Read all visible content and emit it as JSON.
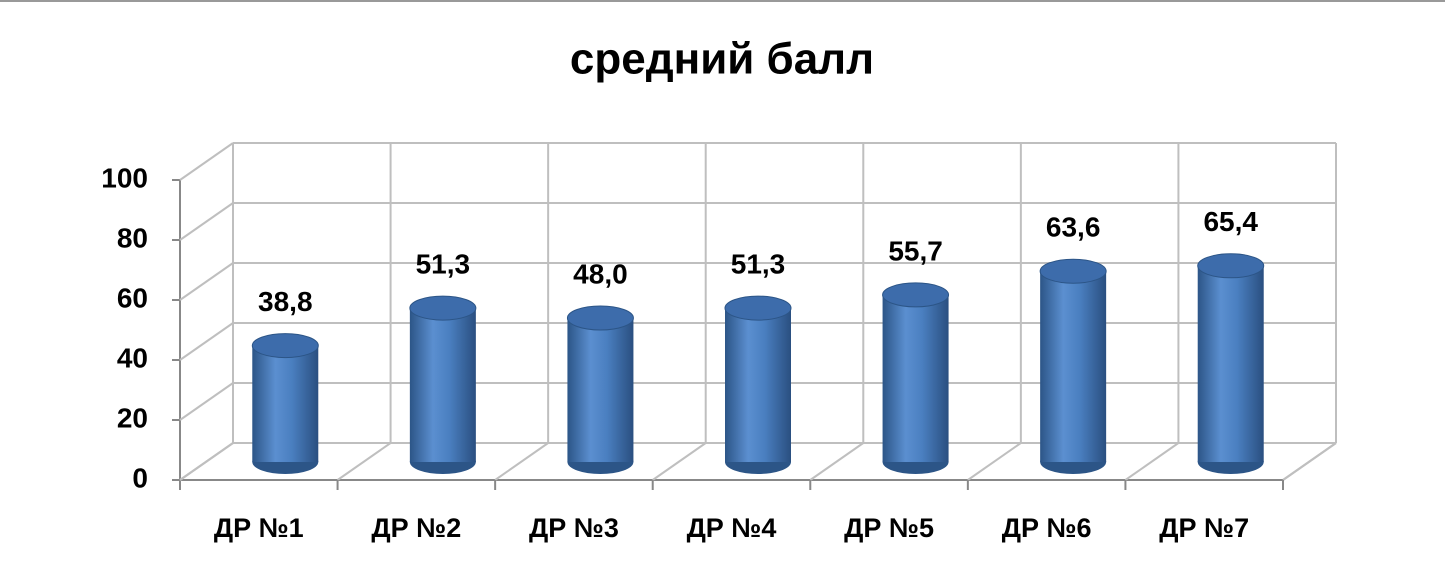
{
  "chart_data": {
    "type": "bar",
    "title": "средний балл",
    "categories": [
      "ДР №1",
      "ДР №2",
      "ДР №3",
      "ДР №4",
      "ДР №5",
      "ДР №6",
      "ДР №7"
    ],
    "values": [
      38.8,
      51.3,
      48.0,
      51.3,
      55.7,
      63.6,
      65.4
    ],
    "value_labels": [
      "38,8",
      "51,3",
      "48,0",
      "51,3",
      "55,7",
      "63,6",
      "65,4"
    ],
    "color": "#4f81bd",
    "ylim": [
      0,
      100
    ],
    "yticks": [
      0,
      20,
      40,
      60,
      80,
      100
    ],
    "grid": true
  }
}
